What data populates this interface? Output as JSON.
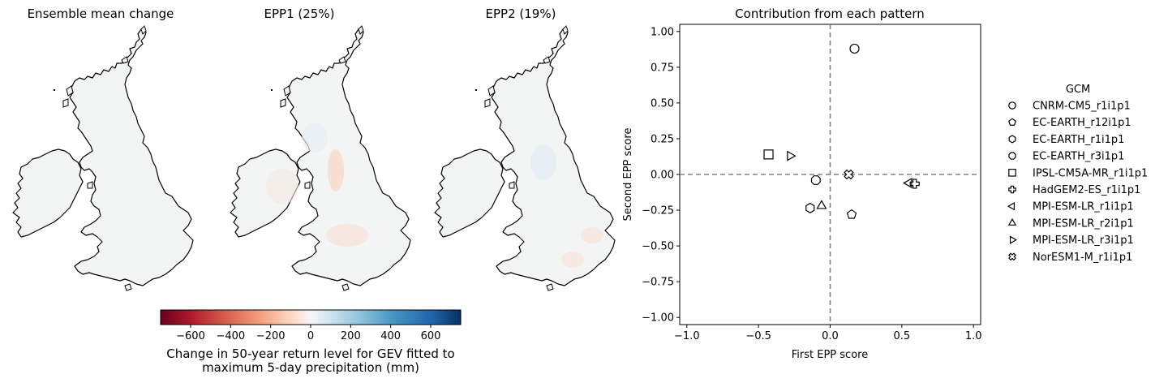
{
  "maps": [
    {
      "title": "Ensemble mean change"
    },
    {
      "title": "EPP1 (25%)"
    },
    {
      "title": "EPP2 (19%)"
    }
  ],
  "colorbar": {
    "label_line1": "Change in 50-year return level for GEV fitted to",
    "label_line2": "maximum 5-day precipitation (mm)",
    "ticks": [
      -600,
      -400,
      -200,
      0,
      200,
      400,
      600
    ],
    "tick_labels": [
      "−600",
      "−400",
      "−200",
      "0",
      "200",
      "400",
      "600"
    ],
    "range": [
      -750,
      750
    ],
    "colormap": "RdBu"
  },
  "chart_data": {
    "type": "scatter",
    "title": "Contribution from each pattern",
    "xlabel": "First EPP score",
    "ylabel": "Second EPP score",
    "xlim": [
      -1.05,
      1.05
    ],
    "ylim": [
      -1.05,
      1.05
    ],
    "xticks": [
      -1.0,
      -0.5,
      0.0,
      0.5,
      1.0
    ],
    "xtick_labels": [
      "−1.0",
      "−0.5",
      "0.0",
      "0.5",
      "1.0"
    ],
    "yticks": [
      1.0,
      0.75,
      0.5,
      0.25,
      0.0,
      -0.25,
      -0.5,
      -0.75,
      -1.0
    ],
    "ytick_labels": [
      "1.00",
      "0.75",
      "0.50",
      "0.25",
      "0.00",
      "−0.25",
      "−0.50",
      "−0.75",
      "−1.00"
    ],
    "reference_lines": {
      "x": 0,
      "y": 0,
      "style": "dashed",
      "color": "#808080"
    },
    "grid": false,
    "legend": {
      "title": "GCM",
      "placement": "right, outside"
    },
    "series": [
      {
        "name": "CNRM-CM5_r1i1p1",
        "marker": "circle",
        "x": 0.17,
        "y": 0.88
      },
      {
        "name": "EC-EARTH_r12i1p1",
        "marker": "pentagon",
        "x": 0.15,
        "y": -0.28
      },
      {
        "name": "EC-EARTH_r1i1p1",
        "marker": "hexagon",
        "x": -0.14,
        "y": -0.235
      },
      {
        "name": "EC-EARTH_r3i1p1",
        "marker": "octagon",
        "x": -0.1,
        "y": -0.04
      },
      {
        "name": "IPSL-CM5A-MR_r1i1p1",
        "marker": "square",
        "x": -0.43,
        "y": 0.14
      },
      {
        "name": "HadGEM2-ES_r1i1p1",
        "marker": "plus",
        "x": 0.59,
        "y": -0.065
      },
      {
        "name": "MPI-ESM-LR_r1i1p1",
        "marker": "triangle-left",
        "x": 0.55,
        "y": -0.06
      },
      {
        "name": "MPI-ESM-LR_r2i1p1",
        "marker": "triangle-up",
        "x": -0.06,
        "y": -0.22
      },
      {
        "name": "MPI-ESM-LR_r3i1p1",
        "marker": "triangle-right",
        "x": -0.28,
        "y": 0.13
      },
      {
        "name": "NorESM1-M_r1i1p1",
        "marker": "x-filled",
        "x": 0.13,
        "y": 0.0
      }
    ]
  }
}
